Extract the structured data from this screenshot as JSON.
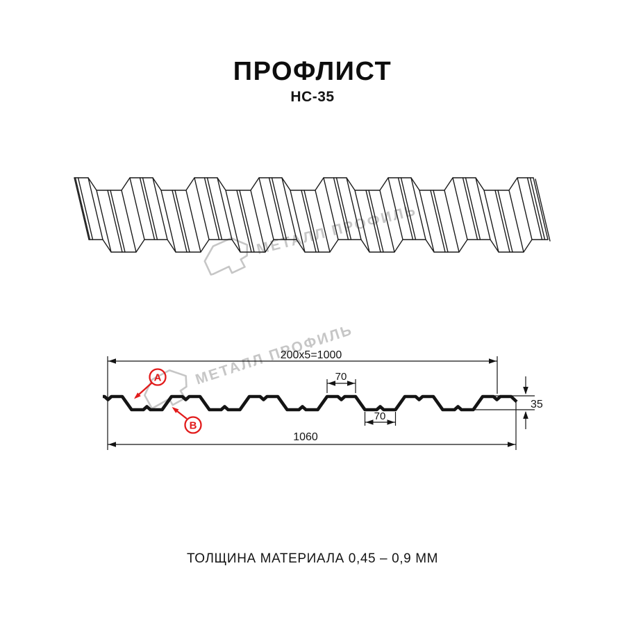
{
  "page": {
    "title": "ПРОФЛИСТ",
    "subtitle": "НС-35",
    "footer_note": "ТОЛЩИНА МАТЕРИАЛА 0,45 – 0,9 ММ"
  },
  "watermark": {
    "brand": "МЕТАЛЛ ПРОФИЛЬ",
    "logo_icon": "metall-profil-folded-sheet-logo"
  },
  "diagram": {
    "type": "technical-profile-drawing",
    "dimensions": {
      "top_width": "200x5=1000",
      "rib_top_width": "70",
      "rib_bottom_width": "70",
      "profile_height": "35",
      "total_width": "1060"
    },
    "callouts": {
      "point_a": "A",
      "point_b": "B"
    }
  },
  "colors": {
    "line_black": "#141414",
    "accent_red": "#e21b1b",
    "watermark_gray": "#c6c6c6"
  }
}
